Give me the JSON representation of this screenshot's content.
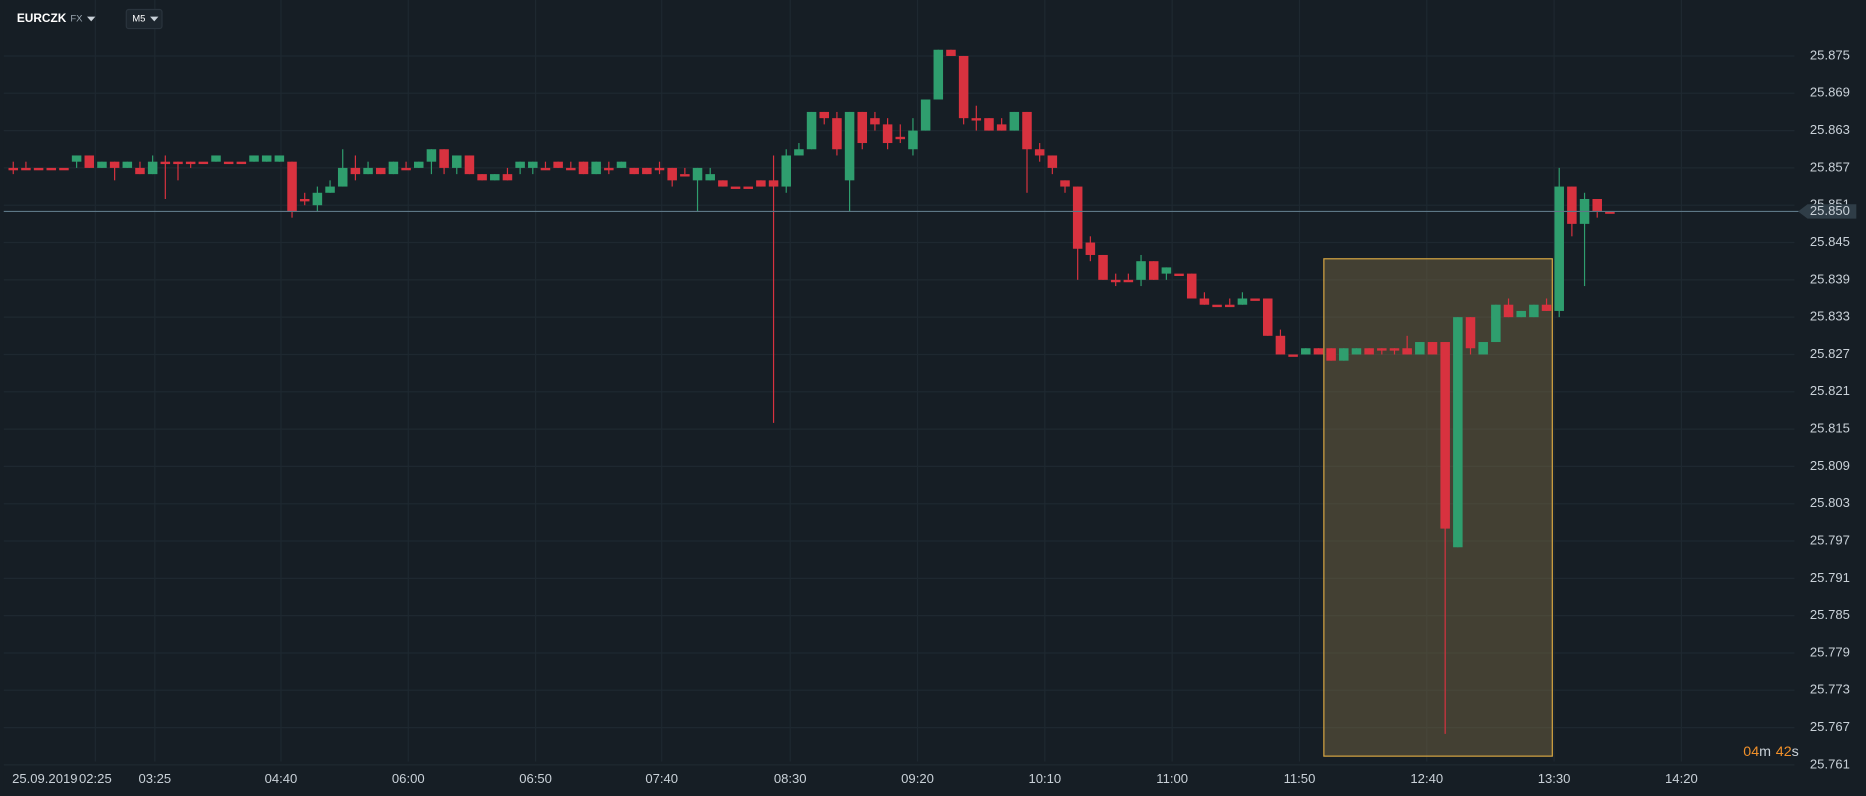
{
  "chart_data": {
    "type": "candlestick",
    "symbol": "EURCZK",
    "market": "FX",
    "timeframe": "M5",
    "date": "25.09.2019",
    "xtick_labels": [
      "02:25",
      "03:25",
      "04:40",
      "06:00",
      "06:50",
      "07:40",
      "08:30",
      "09:20",
      "10:10",
      "11:00",
      "11:50",
      "12:40",
      "13:30",
      "14:20"
    ],
    "ylim": [
      25.756,
      25.884
    ],
    "yticks": [
      25.875,
      25.869,
      25.863,
      25.857,
      25.851,
      25.845,
      25.839,
      25.833,
      25.827,
      25.821,
      25.815,
      25.809,
      25.803,
      25.797,
      25.791,
      25.785,
      25.779,
      25.773,
      25.767,
      25.761
    ],
    "grid": true,
    "up_color": "#2f9e6e",
    "down_color": "#d8323f",
    "last_price": {
      "value": 25.85,
      "label": "25.850"
    },
    "countdown_min": "04",
    "countdown_min_unit": "m",
    "countdown_sec": "42",
    "countdown_sec_unit": "s",
    "candles": [
      [
        25.857,
        25.858,
        25.856,
        25.857
      ],
      [
        25.857,
        25.858,
        25.857,
        25.857
      ],
      [
        25.857,
        25.857,
        25.857,
        25.857
      ],
      [
        25.857,
        25.857,
        25.857,
        25.857
      ],
      [
        25.857,
        25.857,
        25.857,
        25.857
      ],
      [
        25.858,
        25.859,
        25.857,
        25.859
      ],
      [
        25.859,
        25.859,
        25.857,
        25.857
      ],
      [
        25.857,
        25.858,
        25.857,
        25.858
      ],
      [
        25.858,
        25.858,
        25.855,
        25.857
      ],
      [
        25.857,
        25.858,
        25.857,
        25.858
      ],
      [
        25.857,
        25.858,
        25.856,
        25.856
      ],
      [
        25.856,
        25.859,
        25.856,
        25.858
      ],
      [
        25.858,
        25.859,
        25.852,
        25.858
      ],
      [
        25.858,
        25.858,
        25.855,
        25.858
      ],
      [
        25.858,
        25.858,
        25.857,
        25.858
      ],
      [
        25.858,
        25.858,
        25.858,
        25.858
      ],
      [
        25.858,
        25.859,
        25.858,
        25.859
      ],
      [
        25.858,
        25.858,
        25.858,
        25.858
      ],
      [
        25.858,
        25.858,
        25.858,
        25.858
      ],
      [
        25.858,
        25.859,
        25.858,
        25.859
      ],
      [
        25.858,
        25.859,
        25.858,
        25.859
      ],
      [
        25.858,
        25.859,
        25.858,
        25.859
      ],
      [
        25.858,
        25.858,
        25.849,
        25.85
      ],
      [
        25.852,
        25.853,
        25.851,
        25.852
      ],
      [
        25.851,
        25.854,
        25.85,
        25.853
      ],
      [
        25.853,
        25.855,
        25.853,
        25.854
      ],
      [
        25.854,
        25.86,
        25.854,
        25.857
      ],
      [
        25.857,
        25.859,
        25.855,
        25.856
      ],
      [
        25.856,
        25.858,
        25.856,
        25.857
      ],
      [
        25.857,
        25.857,
        25.856,
        25.856
      ],
      [
        25.856,
        25.858,
        25.856,
        25.858
      ],
      [
        25.857,
        25.858,
        25.857,
        25.857
      ],
      [
        25.857,
        25.858,
        25.857,
        25.858
      ],
      [
        25.858,
        25.86,
        25.856,
        25.86
      ],
      [
        25.86,
        25.86,
        25.856,
        25.857
      ],
      [
        25.857,
        25.859,
        25.856,
        25.859
      ],
      [
        25.859,
        25.859,
        25.856,
        25.856
      ],
      [
        25.856,
        25.856,
        25.855,
        25.855
      ],
      [
        25.855,
        25.856,
        25.855,
        25.856
      ],
      [
        25.856,
        25.857,
        25.855,
        25.855
      ],
      [
        25.857,
        25.858,
        25.856,
        25.858
      ],
      [
        25.857,
        25.858,
        25.856,
        25.858
      ],
      [
        25.857,
        25.858,
        25.857,
        25.857
      ],
      [
        25.858,
        25.858,
        25.857,
        25.857
      ],
      [
        25.857,
        25.858,
        25.857,
        25.857
      ],
      [
        25.858,
        25.858,
        25.856,
        25.856
      ],
      [
        25.856,
        25.858,
        25.856,
        25.858
      ],
      [
        25.857,
        25.858,
        25.856,
        25.857
      ],
      [
        25.857,
        25.858,
        25.857,
        25.858
      ],
      [
        25.857,
        25.857,
        25.856,
        25.856
      ],
      [
        25.857,
        25.857,
        25.856,
        25.856
      ],
      [
        25.857,
        25.858,
        25.856,
        25.857
      ],
      [
        25.857,
        25.857,
        25.854,
        25.855
      ],
      [
        25.856,
        25.857,
        25.856,
        25.856
      ],
      [
        25.855,
        25.857,
        25.85,
        25.857
      ],
      [
        25.855,
        25.857,
        25.855,
        25.856
      ],
      [
        25.855,
        25.855,
        25.854,
        25.854
      ],
      [
        25.854,
        25.854,
        25.854,
        25.854
      ],
      [
        25.854,
        25.854,
        25.854,
        25.854
      ],
      [
        25.855,
        25.855,
        25.854,
        25.854
      ],
      [
        25.855,
        25.859,
        25.816,
        25.854
      ],
      [
        25.854,
        25.86,
        25.853,
        25.859
      ],
      [
        25.859,
        25.861,
        25.859,
        25.86
      ],
      [
        25.86,
        25.866,
        25.86,
        25.866
      ],
      [
        25.866,
        25.866,
        25.864,
        25.865
      ],
      [
        25.865,
        25.866,
        25.859,
        25.86
      ],
      [
        25.855,
        25.866,
        25.85,
        25.866
      ],
      [
        25.866,
        25.866,
        25.86,
        25.861
      ],
      [
        25.865,
        25.866,
        25.863,
        25.864
      ],
      [
        25.864,
        25.865,
        25.86,
        25.861
      ],
      [
        25.862,
        25.864,
        25.861,
        25.862
      ],
      [
        25.86,
        25.865,
        25.859,
        25.863
      ],
      [
        25.863,
        25.868,
        25.863,
        25.868
      ],
      [
        25.868,
        25.876,
        25.868,
        25.876
      ],
      [
        25.876,
        25.876,
        25.875,
        25.875
      ],
      [
        25.875,
        25.875,
        25.864,
        25.865
      ],
      [
        25.865,
        25.867,
        25.863,
        25.865
      ],
      [
        25.865,
        25.865,
        25.863,
        25.863
      ],
      [
        25.864,
        25.865,
        25.863,
        25.863
      ],
      [
        25.863,
        25.866,
        25.863,
        25.866
      ],
      [
        25.866,
        25.866,
        25.853,
        25.86
      ],
      [
        25.86,
        25.861,
        25.858,
        25.859
      ],
      [
        25.859,
        25.859,
        25.856,
        25.857
      ],
      [
        25.855,
        25.855,
        25.853,
        25.854
      ],
      [
        25.854,
        25.854,
        25.839,
        25.844
      ],
      [
        25.845,
        25.846,
        25.842,
        25.843
      ],
      [
        25.843,
        25.843,
        25.839,
        25.839
      ],
      [
        25.839,
        25.84,
        25.838,
        25.839
      ],
      [
        25.839,
        25.84,
        25.839,
        25.839
      ],
      [
        25.839,
        25.843,
        25.838,
        25.842
      ],
      [
        25.842,
        25.842,
        25.839,
        25.839
      ],
      [
        25.84,
        25.841,
        25.839,
        25.841
      ],
      [
        25.84,
        25.84,
        25.84,
        25.84
      ],
      [
        25.84,
        25.84,
        25.836,
        25.836
      ],
      [
        25.836,
        25.837,
        25.835,
        25.835
      ],
      [
        25.835,
        25.835,
        25.835,
        25.835
      ],
      [
        25.835,
        25.836,
        25.835,
        25.835
      ],
      [
        25.835,
        25.837,
        25.835,
        25.836
      ],
      [
        25.836,
        25.836,
        25.836,
        25.836
      ],
      [
        25.836,
        25.836,
        25.83,
        25.83
      ],
      [
        25.83,
        25.831,
        25.827,
        25.827
      ],
      [
        25.827,
        25.827,
        25.827,
        25.827
      ],
      [
        25.827,
        25.828,
        25.827,
        25.828
      ],
      [
        25.828,
        25.828,
        25.827,
        25.827
      ],
      [
        25.828,
        25.828,
        25.826,
        25.826
      ],
      [
        25.826,
        25.828,
        25.826,
        25.828
      ],
      [
        25.827,
        25.828,
        25.827,
        25.828
      ],
      [
        25.828,
        25.828,
        25.827,
        25.827
      ],
      [
        25.828,
        25.828,
        25.827,
        25.828
      ],
      [
        25.828,
        25.828,
        25.827,
        25.828
      ],
      [
        25.828,
        25.83,
        25.827,
        25.827
      ],
      [
        25.827,
        25.829,
        25.827,
        25.829
      ],
      [
        25.829,
        25.829,
        25.827,
        25.827
      ],
      [
        25.829,
        25.829,
        25.766,
        25.799
      ],
      [
        25.796,
        25.833,
        25.796,
        25.833
      ],
      [
        25.833,
        25.833,
        25.827,
        25.828
      ],
      [
        25.827,
        25.829,
        25.827,
        25.829
      ],
      [
        25.829,
        25.835,
        25.829,
        25.835
      ],
      [
        25.835,
        25.836,
        25.833,
        25.833
      ],
      [
        25.833,
        25.834,
        25.833,
        25.834
      ],
      [
        25.833,
        25.835,
        25.833,
        25.835
      ],
      [
        25.835,
        25.836,
        25.834,
        25.834
      ],
      [
        25.834,
        25.857,
        25.833,
        25.854
      ],
      [
        25.854,
        25.854,
        25.846,
        25.848
      ],
      [
        25.848,
        25.853,
        25.838,
        25.852
      ],
      [
        25.852,
        25.852,
        25.849,
        25.85
      ],
      [
        25.85,
        25.85,
        25.85,
        25.85
      ]
    ]
  }
}
